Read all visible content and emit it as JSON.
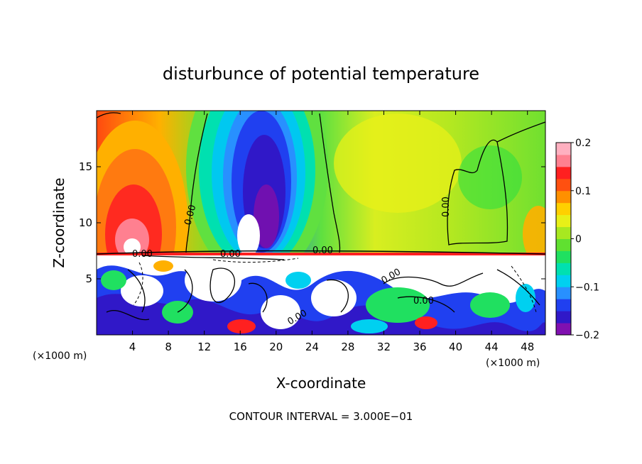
{
  "chart_data": {
    "type": "heatmap",
    "title": "disturbunce of potential temperature",
    "xlabel": "X-coordinate",
    "ylabel": "Z-coordinate",
    "x_unit_left": "(×1000 m)",
    "x_unit_right": "(×1000 m)",
    "xlim": [
      0,
      50
    ],
    "ylim": [
      0,
      20
    ],
    "x_ticks": [
      4,
      8,
      12,
      16,
      20,
      24,
      28,
      32,
      36,
      40,
      44,
      48
    ],
    "x_tick_labels": [
      "4",
      "8",
      "12",
      "16",
      "20",
      "24",
      "28",
      "32",
      "36",
      "40",
      "44",
      "48"
    ],
    "y_ticks": [
      5,
      10,
      15
    ],
    "y_tick_labels": [
      "5",
      "10",
      "15"
    ],
    "colorbar": {
      "range": [
        -0.2,
        0.2
      ],
      "ticks": [
        0.2,
        0.1,
        0,
        -0.1,
        -0.2
      ],
      "tick_labels": [
        "0.2",
        "0.1",
        "0",
        "−0.1",
        "−0.2"
      ],
      "colors": [
        "#8010b0",
        "#3018c8",
        "#2040f0",
        "#2890ff",
        "#00d0f0",
        "#00e0b0",
        "#20e060",
        "#60e030",
        "#a8e820",
        "#e8f018",
        "#ffd000",
        "#ff9000",
        "#ff5010",
        "#ff2020",
        "#ff8090",
        "#ffb0c0"
      ]
    },
    "contour_labels": [
      "0.00",
      "0.00",
      "0.00",
      "0.00",
      "0.00",
      "0.00",
      "0.00",
      "0.00"
    ],
    "contour_interval_text": "CONTOUR INTERVAL = 3.000E−01"
  }
}
